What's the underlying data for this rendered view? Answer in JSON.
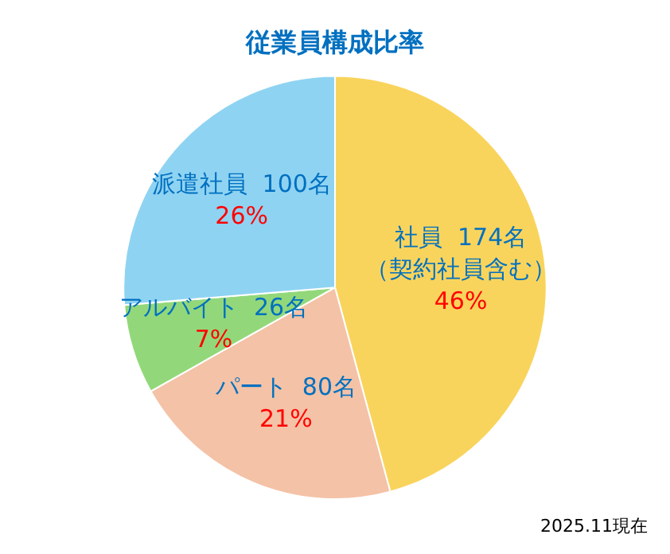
{
  "chart_data": {
    "type": "pie",
    "title": "従業員構成比率",
    "categories": [
      "社員",
      "パート",
      "アルバイト",
      "派遣社員"
    ],
    "values": [
      174,
      80,
      26,
      100
    ],
    "colors": [
      "#f9d45c",
      "#f4c2a6",
      "#92d87a",
      "#8fd3f2"
    ],
    "value_labels": [
      "174名（契約社員含む）\n46%",
      "80名\n21%",
      "26名\n7%",
      "100名\n26%"
    ],
    "legend": false,
    "annotations": [
      "2025.11現在"
    ]
  }
}
